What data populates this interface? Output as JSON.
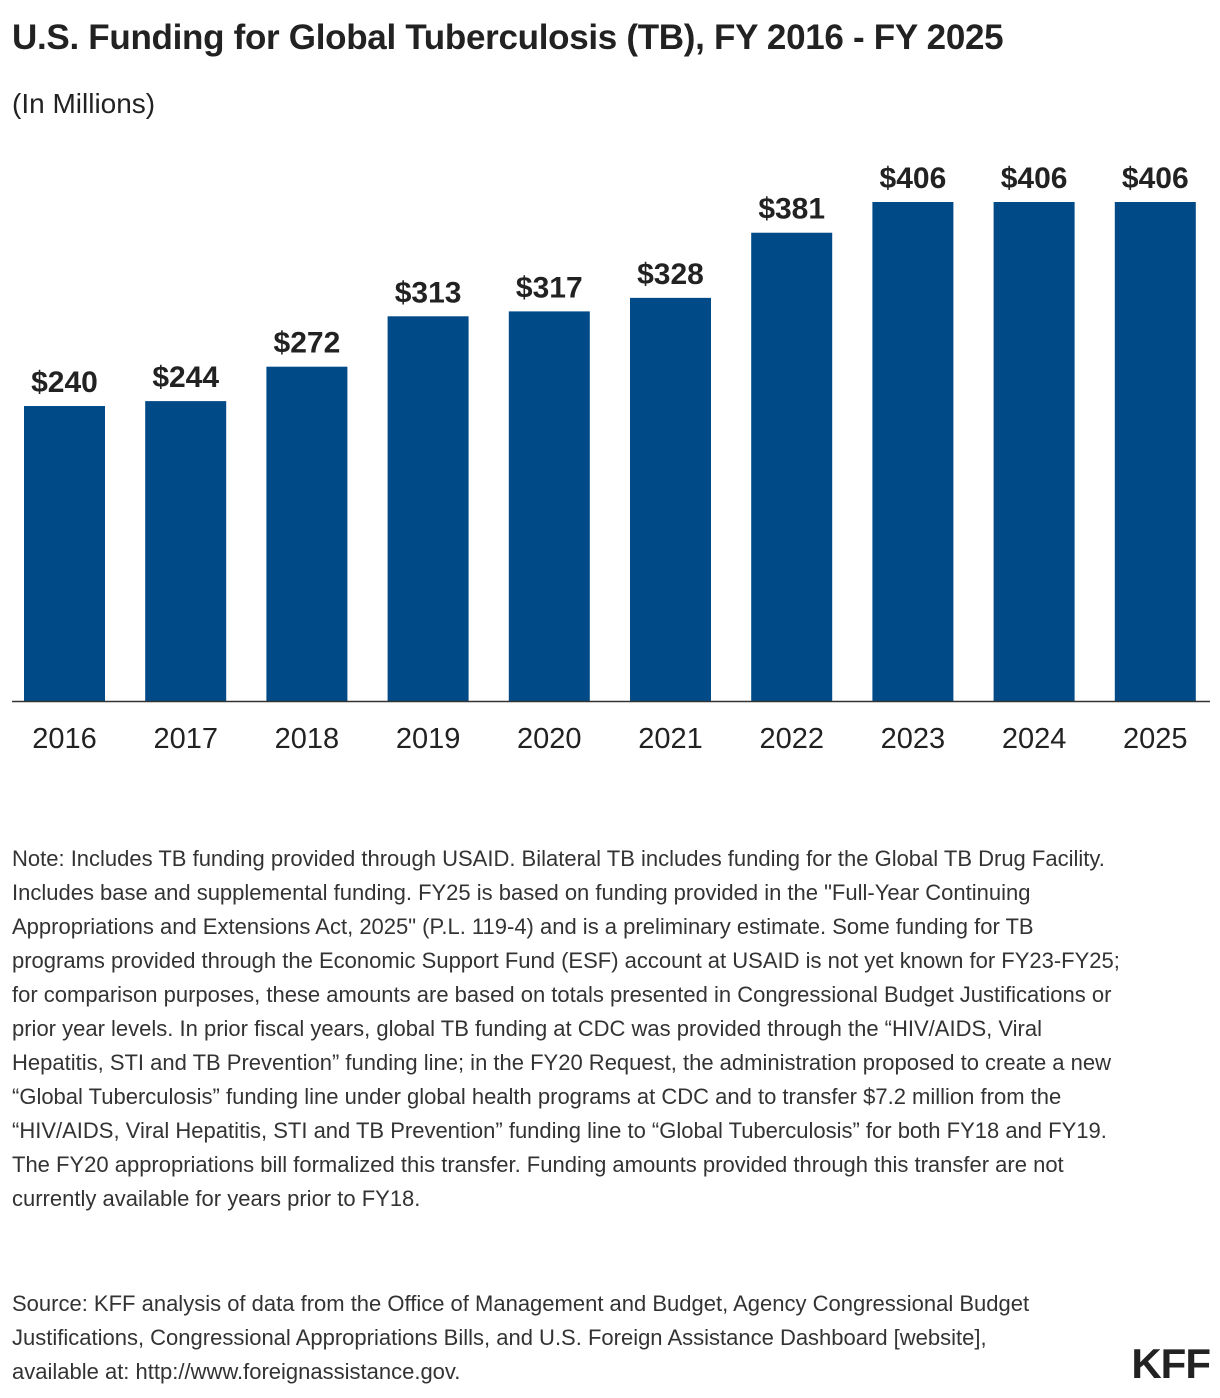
{
  "header": {
    "title": "U.S. Funding for Global Tuberculosis (TB), FY 2016 - FY 2025",
    "subtitle": "(In Millions)"
  },
  "chart_data": {
    "type": "bar",
    "title": "U.S. Funding for Global Tuberculosis (TB), FY 2016 - FY 2025",
    "subtitle": "(In Millions)",
    "categories": [
      "2016",
      "2017",
      "2018",
      "2019",
      "2020",
      "2021",
      "2022",
      "2023",
      "2024",
      "2025"
    ],
    "values": [
      240,
      244,
      272,
      313,
      317,
      328,
      381,
      406,
      406,
      406
    ],
    "value_labels": [
      "$240",
      "$244",
      "$272",
      "$313",
      "$317",
      "$328",
      "$381",
      "$406",
      "$406",
      "$406"
    ],
    "xlabel": "",
    "ylabel": "",
    "ylim": [
      0,
      406
    ],
    "grid": false,
    "bar_color": "#004A87"
  },
  "footer": {
    "note": "Note: Includes TB funding provided through USAID. Bilateral TB includes funding for the Global TB Drug Facility. Includes base and supplemental funding. FY25 is based on funding provided in the \"Full-Year Continuing Appropriations and Extensions Act, 2025\" (P.L. 119-4) and is a preliminary estimate. Some funding for TB programs provided through the Economic Support Fund (ESF) account at USAID is not yet known for FY23-FY25; for comparison purposes, these amounts are based on totals presented in Congressional Budget Justifications or prior year levels. In prior fiscal years, global TB funding at CDC was provided through the “HIV/AIDS, Viral Hepatitis, STI and TB Prevention” funding line; in the FY20 Request, the administration proposed to create a new “Global Tuberculosis” funding line under global health programs at CDC and to transfer $7.2 million from the “HIV/AIDS, Viral Hepatitis, STI and TB Prevention” funding line to “Global Tuberculosis” for both FY18 and FY19. The FY20 appropriations bill formalized this transfer. Funding amounts provided through this transfer are not currently available for years prior to FY18.",
    "source": "Source: KFF analysis of data from the Office of Management and Budget, Agency Congressional Budget Justifications, Congressional Appropriations Bills, and U.S. Foreign Assistance Dashboard [website], available at: http://www.foreignassistance.gov.",
    "logo": "KFF"
  }
}
